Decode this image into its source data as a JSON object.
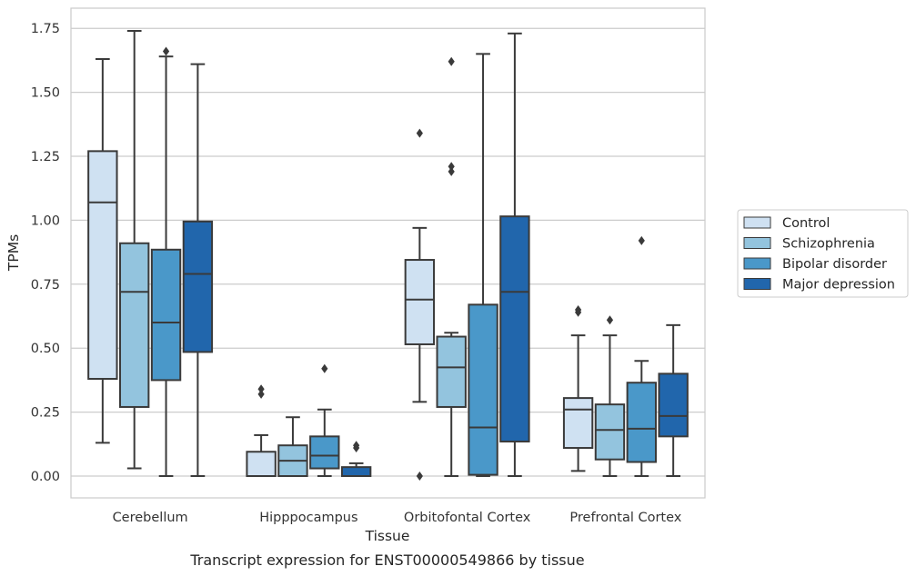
{
  "chart_data": {
    "type": "box",
    "title": "",
    "caption": "Transcript expression for ENST00000549866 by tissue",
    "xlabel": "Tissue",
    "ylabel": "TPMs",
    "ylim": [
      -0.085,
      1.83
    ],
    "yticks": [
      "0.00",
      "0.25",
      "0.50",
      "0.75",
      "1.00",
      "1.25",
      "1.50",
      "1.75"
    ],
    "grid": true,
    "legend_position": "right",
    "categories": [
      "Cerebellum",
      "Hipppocampus",
      "Orbitofontal Cortex",
      "Prefrontal Cortex"
    ],
    "series": [
      {
        "name": "Control",
        "color": "#cfe1f2",
        "boxes": [
          {
            "whisker_low": 0.13,
            "q1": 0.38,
            "median": 1.07,
            "q3": 1.27,
            "whisker_high": 1.63,
            "outliers": []
          },
          {
            "whisker_low": 0.0,
            "q1": 0.0,
            "median": 0.0,
            "q3": 0.095,
            "whisker_high": 0.16,
            "outliers": [
              0.32,
              0.34
            ]
          },
          {
            "whisker_low": 0.29,
            "q1": 0.515,
            "median": 0.69,
            "q3": 0.845,
            "whisker_high": 0.97,
            "outliers": [
              0.0,
              1.34
            ]
          },
          {
            "whisker_low": 0.02,
            "q1": 0.11,
            "median": 0.26,
            "q3": 0.305,
            "whisker_high": 0.55,
            "outliers": [
              0.64,
              0.65
            ]
          }
        ]
      },
      {
        "name": "Schizophrenia",
        "color": "#93c4de",
        "boxes": [
          {
            "whisker_low": 0.03,
            "q1": 0.27,
            "median": 0.72,
            "q3": 0.91,
            "whisker_high": 1.74,
            "outliers": []
          },
          {
            "whisker_low": 0.0,
            "q1": 0.0,
            "median": 0.06,
            "q3": 0.12,
            "whisker_high": 0.23,
            "outliers": []
          },
          {
            "whisker_low": 0.0,
            "q1": 0.27,
            "median": 0.425,
            "q3": 0.545,
            "whisker_high": 0.56,
            "outliers": [
              1.19,
              1.21,
              1.62
            ]
          },
          {
            "whisker_low": 0.0,
            "q1": 0.065,
            "median": 0.18,
            "q3": 0.28,
            "whisker_high": 0.55,
            "outliers": [
              0.61
            ]
          }
        ]
      },
      {
        "name": "Bipolar disorder",
        "color": "#4a98c9",
        "boxes": [
          {
            "whisker_low": 0.0,
            "q1": 0.375,
            "median": 0.6,
            "q3": 0.885,
            "whisker_high": 1.64,
            "outliers": [
              1.66
            ]
          },
          {
            "whisker_low": 0.0,
            "q1": 0.03,
            "median": 0.08,
            "q3": 0.155,
            "whisker_high": 0.26,
            "outliers": [
              0.42
            ]
          },
          {
            "whisker_low": 0.0,
            "q1": 0.005,
            "median": 0.19,
            "q3": 0.67,
            "whisker_high": 1.65,
            "outliers": []
          },
          {
            "whisker_low": 0.0,
            "q1": 0.055,
            "median": 0.185,
            "q3": 0.365,
            "whisker_high": 0.45,
            "outliers": [
              0.92
            ]
          }
        ]
      },
      {
        "name": "Major depression",
        "color": "#2166ac",
        "boxes": [
          {
            "whisker_low": 0.0,
            "q1": 0.485,
            "median": 0.79,
            "q3": 0.995,
            "whisker_high": 1.61,
            "outliers": []
          },
          {
            "whisker_low": 0.0,
            "q1": 0.0,
            "median": 0.0,
            "q3": 0.035,
            "whisker_high": 0.05,
            "outliers": [
              0.11,
              0.12
            ]
          },
          {
            "whisker_low": 0.0,
            "q1": 0.135,
            "median": 0.72,
            "q3": 1.015,
            "whisker_high": 1.73,
            "outliers": []
          },
          {
            "whisker_low": 0.0,
            "q1": 0.155,
            "median": 0.235,
            "q3": 0.4,
            "whisker_high": 0.59,
            "outliers": []
          }
        ]
      }
    ]
  }
}
